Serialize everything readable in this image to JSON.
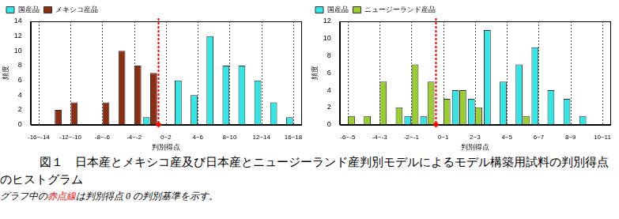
{
  "chart_data": [
    {
      "type": "bar",
      "x_label": "判別得点",
      "y_label": "頻度",
      "bins": [
        -16,
        -14,
        -12,
        -10,
        -8,
        -6,
        -4,
        -2,
        0,
        2,
        4,
        6,
        8,
        10,
        12,
        14,
        16,
        18
      ],
      "series": [
        {
          "name": "国産品",
          "color": "#33e6e6",
          "values": [
            0,
            0,
            0,
            0,
            0,
            0,
            0,
            1,
            0,
            6,
            4,
            12,
            8,
            8,
            6,
            3,
            1
          ]
        },
        {
          "name": "メキシコ産品",
          "color": "#8b2e12",
          "values": [
            0,
            2,
            3,
            0,
            3,
            10,
            8,
            7,
            0,
            0,
            0,
            0,
            0,
            0,
            0,
            0,
            0
          ]
        }
      ],
      "xlim": [
        -16,
        18
      ],
      "xticks": [
        {
          "value": -15,
          "label": "-16~-14"
        },
        {
          "value": -11,
          "label": "-12~-10"
        },
        {
          "value": -7,
          "label": "-8~-6"
        },
        {
          "value": -3,
          "label": "-4~-2"
        },
        {
          "value": 1,
          "label": "0~2"
        },
        {
          "value": 5,
          "label": "4~6"
        },
        {
          "value": 9,
          "label": "8~10"
        },
        {
          "value": 13,
          "label": "12~14"
        },
        {
          "value": 17,
          "label": "16~18"
        }
      ],
      "ylim": [
        0,
        14
      ],
      "yticks": [
        0,
        2,
        4,
        6,
        8,
        10,
        12,
        14
      ],
      "grid": "x",
      "legend": "upper left",
      "threshold": 0
    },
    {
      "type": "bar",
      "x_label": "判別得点",
      "y_label": "頻度",
      "bins": [
        -6,
        -5,
        -4,
        -3,
        -2,
        -1,
        0,
        1,
        2,
        3,
        4,
        5,
        6,
        7,
        8,
        9,
        10,
        11
      ],
      "series": [
        {
          "name": "国産品",
          "color": "#33e6e6",
          "values": [
            0,
            0,
            0,
            0,
            1,
            1,
            0,
            4,
            3,
            11,
            5,
            7,
            9,
            4,
            3,
            1,
            0
          ]
        },
        {
          "name": "ニュージーランド産品",
          "color": "#9acd32",
          "values": [
            1,
            1,
            5,
            2,
            7,
            5,
            3,
            4,
            2,
            0,
            0,
            1,
            0,
            0,
            0,
            0,
            0
          ]
        }
      ],
      "xlim": [
        -6,
        11
      ],
      "xticks": [
        {
          "value": -5.5,
          "label": "-6~-5"
        },
        {
          "value": -3.5,
          "label": "-4~-3"
        },
        {
          "value": -1.5,
          "label": "-2~-1"
        },
        {
          "value": 0.5,
          "label": "0~1"
        },
        {
          "value": 2.5,
          "label": "2~3"
        },
        {
          "value": 4.5,
          "label": "4~5"
        },
        {
          "value": 6.5,
          "label": "6~7"
        },
        {
          "value": 8.5,
          "label": "8~9"
        },
        {
          "value": 10.5,
          "label": "10~11"
        }
      ],
      "ylim": [
        0,
        12
      ],
      "yticks": [
        0,
        2,
        4,
        6,
        8,
        10,
        12
      ],
      "grid": "x",
      "legend": "upper left",
      "threshold": 0
    }
  ],
  "caption": "図１　日本産とメキシコ産及び日本産とニュージーランド産判別モデルによるモデル構築用試料の判別得点のヒストグラム",
  "note": [
    {
      "text": "グラフ中の"
    },
    {
      "text": "赤点線",
      "color": "#ff0000"
    },
    {
      "text": "は判別得点 0 の判別基準を示す。"
    }
  ]
}
